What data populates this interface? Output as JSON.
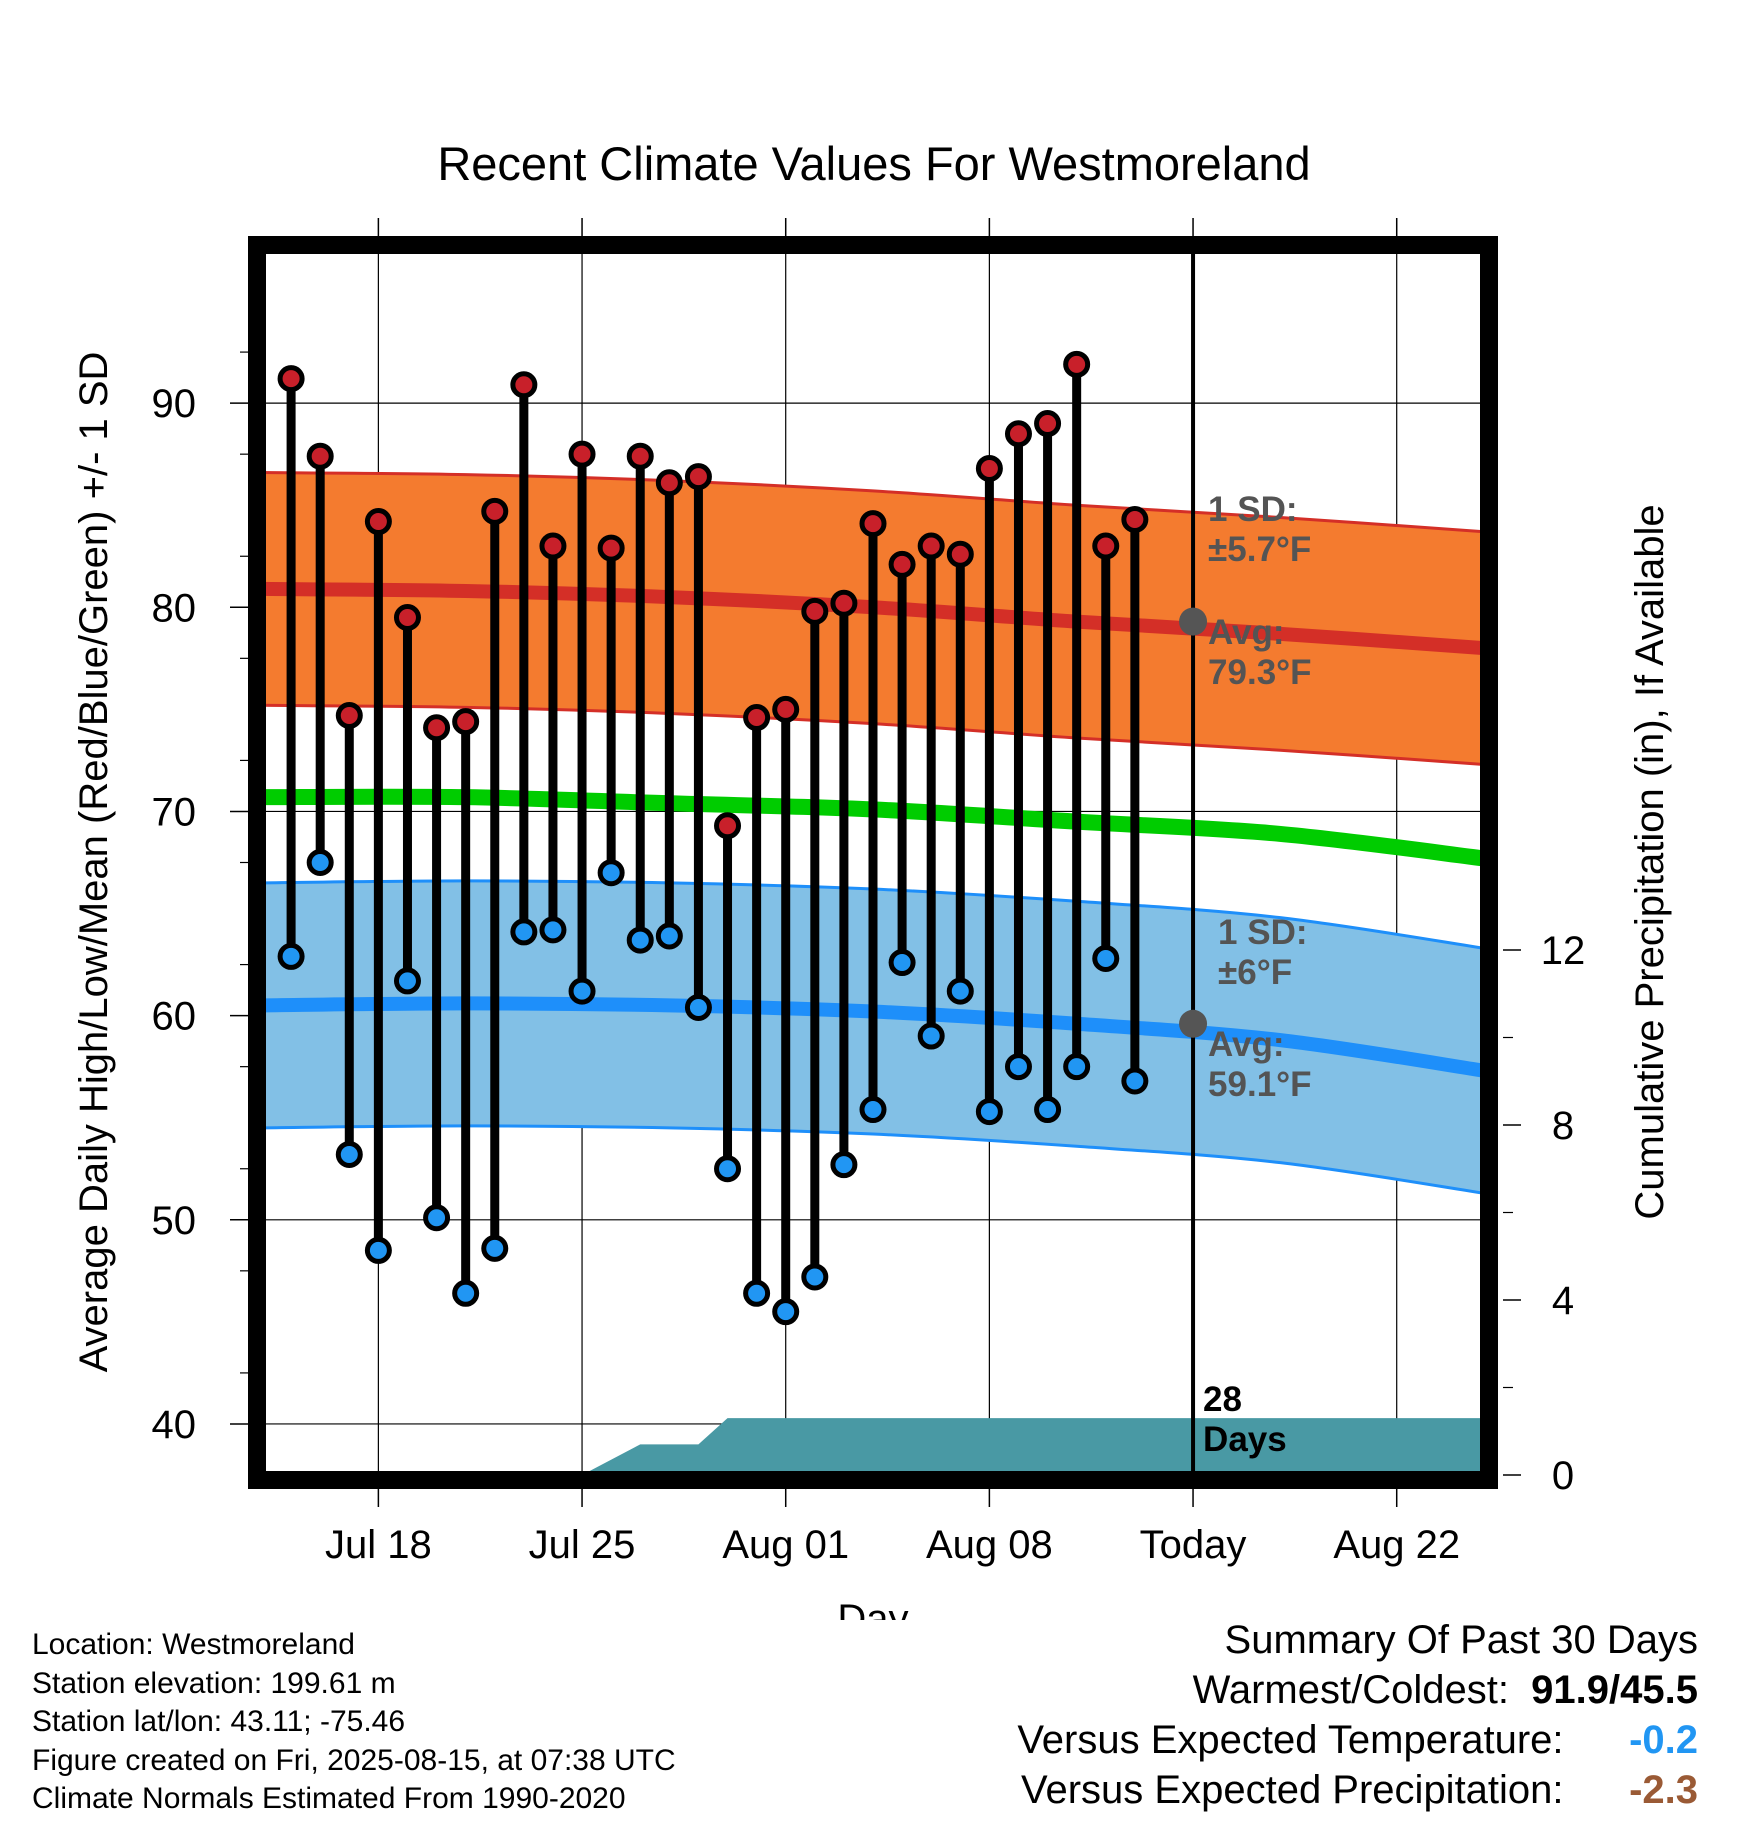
{
  "title": "Recent Climate Values For Westmoreland",
  "chart_data": {
    "type": "line",
    "title": "Recent Climate Values For Westmoreland",
    "xlabel": "Day",
    "ylabel_left": "Average Daily High/Low/Mean (Red/Blue/Green) +/- 1 SD",
    "ylabel_right": "Cumulative Precipitation (in), If Available",
    "ylim_left": [
      37.5,
      97.5
    ],
    "ylim_right": [
      0,
      28
    ],
    "y_ticks_left": [
      "40",
      "50",
      "60",
      "70",
      "80",
      "90"
    ],
    "y_ticks_right": [
      "0",
      "4",
      "8",
      "12"
    ],
    "x_range_days": [
      "2025-07-14",
      "2025-08-25"
    ],
    "x_ticks": [
      {
        "label": "Jul 18",
        "date": "2025-07-18"
      },
      {
        "label": "Jul 25",
        "date": "2025-07-25"
      },
      {
        "label": "Aug 01",
        "date": "2025-08-01"
      },
      {
        "label": "Aug 08",
        "date": "2025-08-08"
      },
      {
        "label": "Today",
        "date": "2025-08-15"
      },
      {
        "label": "Aug 22",
        "date": "2025-08-22"
      }
    ],
    "today": "2025-08-15",
    "daily": [
      {
        "date": "2025-07-15",
        "high": 91.2,
        "low": 62.9
      },
      {
        "date": "2025-07-16",
        "high": 87.4,
        "low": 67.5
      },
      {
        "date": "2025-07-17",
        "high": 74.7,
        "low": 53.2
      },
      {
        "date": "2025-07-18",
        "high": 84.2,
        "low": 48.5
      },
      {
        "date": "2025-07-19",
        "high": 79.5,
        "low": 61.7
      },
      {
        "date": "2025-07-20",
        "high": 74.1,
        "low": 50.1
      },
      {
        "date": "2025-07-21",
        "high": 74.4,
        "low": 46.4
      },
      {
        "date": "2025-07-22",
        "high": 84.7,
        "low": 48.6
      },
      {
        "date": "2025-07-23",
        "high": 90.9,
        "low": 64.1
      },
      {
        "date": "2025-07-24",
        "high": 83.0,
        "low": 64.2
      },
      {
        "date": "2025-07-25",
        "high": 87.5,
        "low": 61.2
      },
      {
        "date": "2025-07-26",
        "high": 82.9,
        "low": 67.0
      },
      {
        "date": "2025-07-27",
        "high": 87.4,
        "low": 63.7
      },
      {
        "date": "2025-07-28",
        "high": 86.1,
        "low": 63.9
      },
      {
        "date": "2025-07-29",
        "high": 86.4,
        "low": 60.4
      },
      {
        "date": "2025-07-30",
        "high": 69.3,
        "low": 52.5
      },
      {
        "date": "2025-07-31",
        "high": 74.6,
        "low": 46.4
      },
      {
        "date": "2025-08-01",
        "high": 75.0,
        "low": 45.5
      },
      {
        "date": "2025-08-02",
        "high": 79.8,
        "low": 47.2
      },
      {
        "date": "2025-08-03",
        "high": 80.2,
        "low": 52.7
      },
      {
        "date": "2025-08-04",
        "high": 84.1,
        "low": 55.4
      },
      {
        "date": "2025-08-05",
        "high": 82.1,
        "low": 62.6
      },
      {
        "date": "2025-08-06",
        "high": 83.0,
        "low": 59.0
      },
      {
        "date": "2025-08-07",
        "high": 82.6,
        "low": 61.2
      },
      {
        "date": "2025-08-08",
        "high": 86.8,
        "low": 55.3
      },
      {
        "date": "2025-08-09",
        "high": 88.5,
        "low": 57.5
      },
      {
        "date": "2025-08-10",
        "high": 89.0,
        "low": 55.4
      },
      {
        "date": "2025-08-11",
        "high": 91.9,
        "low": 57.5
      },
      {
        "date": "2025-08-12",
        "high": 83.0,
        "low": 62.8
      },
      {
        "date": "2025-08-13",
        "high": 84.3,
        "low": 56.8
      }
    ],
    "normals": {
      "dates": [
        "2025-07-14",
        "2025-07-21",
        "2025-07-28",
        "2025-08-04",
        "2025-08-11",
        "2025-08-18",
        "2025-08-25"
      ],
      "avg_high": [
        80.9,
        80.8,
        80.5,
        80.0,
        79.3,
        78.7,
        78.0
      ],
      "avg_low": [
        60.5,
        60.6,
        60.5,
        60.2,
        59.6,
        58.8,
        57.3
      ],
      "avg_mean": [
        70.7,
        70.7,
        70.4,
        70.1,
        69.5,
        68.9,
        67.7
      ],
      "sd_high": 5.7,
      "sd_low": 6.0
    },
    "precip_cumulative": {
      "dates": [
        "2025-07-25",
        "2025-07-27",
        "2025-07-29",
        "2025-07-30",
        "2025-07-31",
        "2025-08-25"
      ],
      "values": [
        0,
        0.7,
        0.7,
        1.3,
        1.3,
        1.3
      ]
    },
    "annotations": {
      "high_sd": [
        "1 SD:",
        "±5.7°F"
      ],
      "high_avg": [
        "Avg:",
        "79.3°F"
      ],
      "low_sd": [
        "1 SD:",
        "±6°F"
      ],
      "low_avg": [
        "Avg:",
        "59.1°F"
      ],
      "days": [
        "28",
        "Days"
      ]
    },
    "colors": {
      "high_dot": "#c8202a",
      "low_dot": "#2196f3",
      "high_band": "#f47b2f",
      "high_line": "#d42f27",
      "low_band": "#82c0e6",
      "low_line": "#1e8ffa",
      "mean_line": "#00cc00",
      "precip": "#4999a4"
    }
  },
  "info": {
    "location": "Location: Westmoreland",
    "elevation": "Station elevation: 199.61 m",
    "latlon": "Station lat/lon: 43.11; -75.46",
    "created": "Figure created on Fri, 2025-08-15, at 07:38 UTC",
    "normals": "Climate Normals Estimated From 1990-2020"
  },
  "summary": {
    "heading": "Summary Of Past 30 Days",
    "warmest_label": "Warmest/Coldest:",
    "warmest_value": "91.9/45.5",
    "temp_label": "Versus Expected Temperature:",
    "temp_value": "-0.2",
    "temp_color": "#2196f3",
    "precip_label": "Versus Expected Precipitation:",
    "precip_value": "-2.3",
    "precip_color": "#9a5a35"
  }
}
